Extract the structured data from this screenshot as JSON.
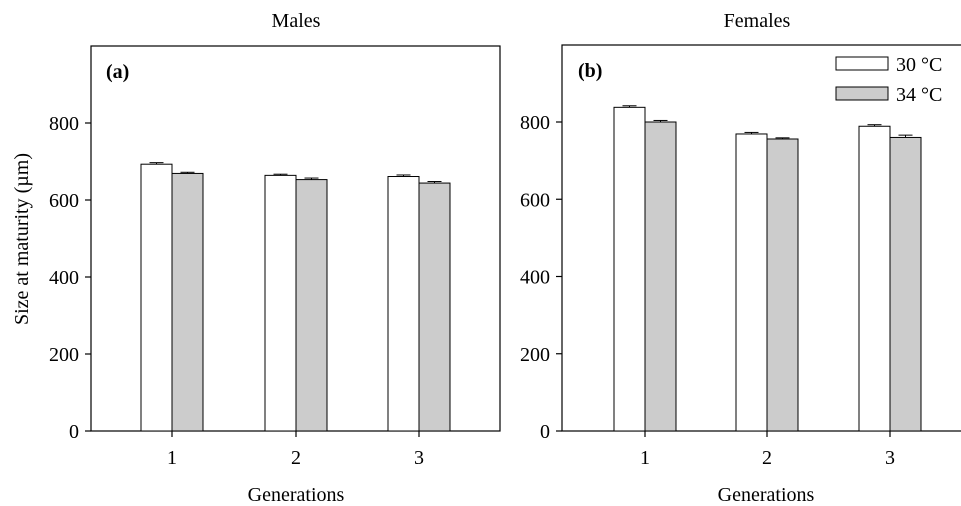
{
  "figure": {
    "ylabel": "Size at maturity (µm)",
    "colors": {
      "30": "#ffffff",
      "34": "#cccccc",
      "stroke": "#000000"
    }
  },
  "chart_data": [
    {
      "type": "bar",
      "panel_label": "(a)",
      "title": "Males",
      "xlabel": "Generations",
      "ylabel": "Size at maturity (µm)",
      "categories": [
        "1",
        "2",
        "3"
      ],
      "yticks": [
        "0",
        "200",
        "400",
        "600",
        "800"
      ],
      "ylim": [
        0,
        1000
      ],
      "series": [
        {
          "name": "30 °C",
          "values": [
            693,
            664,
            661
          ],
          "errors": [
            4,
            3,
            4
          ]
        },
        {
          "name": "34 °C",
          "values": [
            669,
            653,
            644
          ],
          "errors": [
            3,
            4,
            4
          ]
        }
      ]
    },
    {
      "type": "bar",
      "panel_label": "(b)",
      "title": "Females",
      "xlabel": "Generations",
      "categories": [
        "1",
        "2",
        "3"
      ],
      "yticks": [
        "0",
        "200",
        "400",
        "600",
        "800"
      ],
      "ylim": [
        0,
        1000
      ],
      "legend": "top-right",
      "series": [
        {
          "name": "30 °C",
          "values": [
            838,
            769,
            789
          ],
          "errors": [
            4,
            4,
            4
          ]
        },
        {
          "name": "34 °C",
          "values": [
            800,
            756,
            760
          ],
          "errors": [
            4,
            3,
            6
          ]
        }
      ]
    }
  ]
}
